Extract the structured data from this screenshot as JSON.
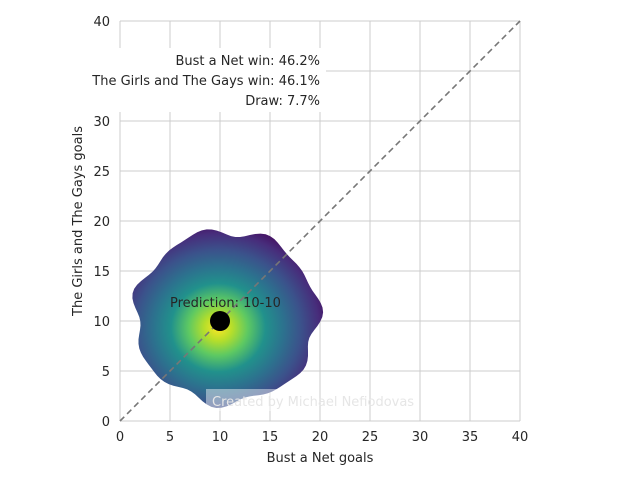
{
  "chart_data": {
    "type": "heatmap",
    "xlabel": "Bust a Net goals",
    "ylabel": "The Girls and The Gays goals",
    "xlim": [
      0,
      40
    ],
    "ylim": [
      0,
      40
    ],
    "xticks": [
      "0",
      "5",
      "10",
      "15",
      "20",
      "25",
      "30",
      "35",
      "40"
    ],
    "yticks": [
      "0",
      "5",
      "10",
      "15",
      "20",
      "25",
      "30",
      "35",
      "40"
    ],
    "grid": true,
    "colormap": "viridis",
    "diagonal_line": {
      "from": [
        0,
        0
      ],
      "to": [
        40,
        40
      ],
      "style": "dashed",
      "color": "#777777"
    },
    "density_center": [
      10,
      10
    ],
    "density_extent": {
      "x": [
        1.5,
        19.8
      ],
      "y": [
        1.8,
        19.0
      ]
    },
    "prediction_point": {
      "x": 10,
      "y": 10,
      "color": "#000000"
    },
    "prediction_label": "Prediction: 10-10",
    "win_probabilities": [
      "Bust a Net win: 46.2%",
      "The Girls and The Gays win: 46.1%",
      "Draw: 7.7%"
    ],
    "watermark": "Created by Michael Nefiodovas"
  }
}
